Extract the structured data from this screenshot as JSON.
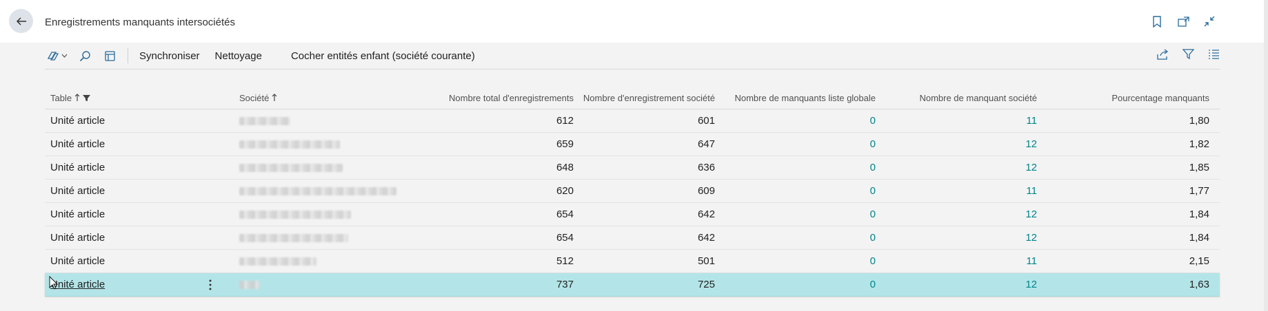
{
  "header": {
    "title": "Enregistrements manquants intersociétés"
  },
  "toolbar": {
    "actions": [
      "Synchroniser",
      "Nettoyage",
      "Cocher entités enfant (société courante)"
    ]
  },
  "columns": {
    "table": "Table",
    "societe": "Société",
    "total": "Nombre total d'enregistrements",
    "societe_records": "Nombre d'enregistrement société",
    "missing_global": "Nombre de manquants liste globale",
    "missing_company": "Nombre de manquant société",
    "percent": "Pourcentage manquants"
  },
  "rows": [
    {
      "table": "Unité article",
      "total": "612",
      "company_records": "601",
      "missing_global": "0",
      "missing_company": "11",
      "percent": "1,80"
    },
    {
      "table": "Unité article",
      "total": "659",
      "company_records": "647",
      "missing_global": "0",
      "missing_company": "12",
      "percent": "1,82"
    },
    {
      "table": "Unité article",
      "total": "648",
      "company_records": "636",
      "missing_global": "0",
      "missing_company": "12",
      "percent": "1,85"
    },
    {
      "table": "Unité article",
      "total": "620",
      "company_records": "609",
      "missing_global": "0",
      "missing_company": "11",
      "percent": "1,77"
    },
    {
      "table": "Unité article",
      "total": "654",
      "company_records": "642",
      "missing_global": "0",
      "missing_company": "12",
      "percent": "1,84"
    },
    {
      "table": "Unité article",
      "total": "654",
      "company_records": "642",
      "missing_global": "0",
      "missing_company": "12",
      "percent": "1,84"
    },
    {
      "table": "Unité article",
      "total": "512",
      "company_records": "501",
      "missing_global": "0",
      "missing_company": "11",
      "percent": "2,15"
    },
    {
      "table": "Unité article",
      "total": "737",
      "company_records": "725",
      "missing_global": "0",
      "missing_company": "12",
      "percent": "1,63"
    }
  ],
  "colors": {
    "accent": "#008489",
    "selected_row": "#b3e5e8"
  }
}
